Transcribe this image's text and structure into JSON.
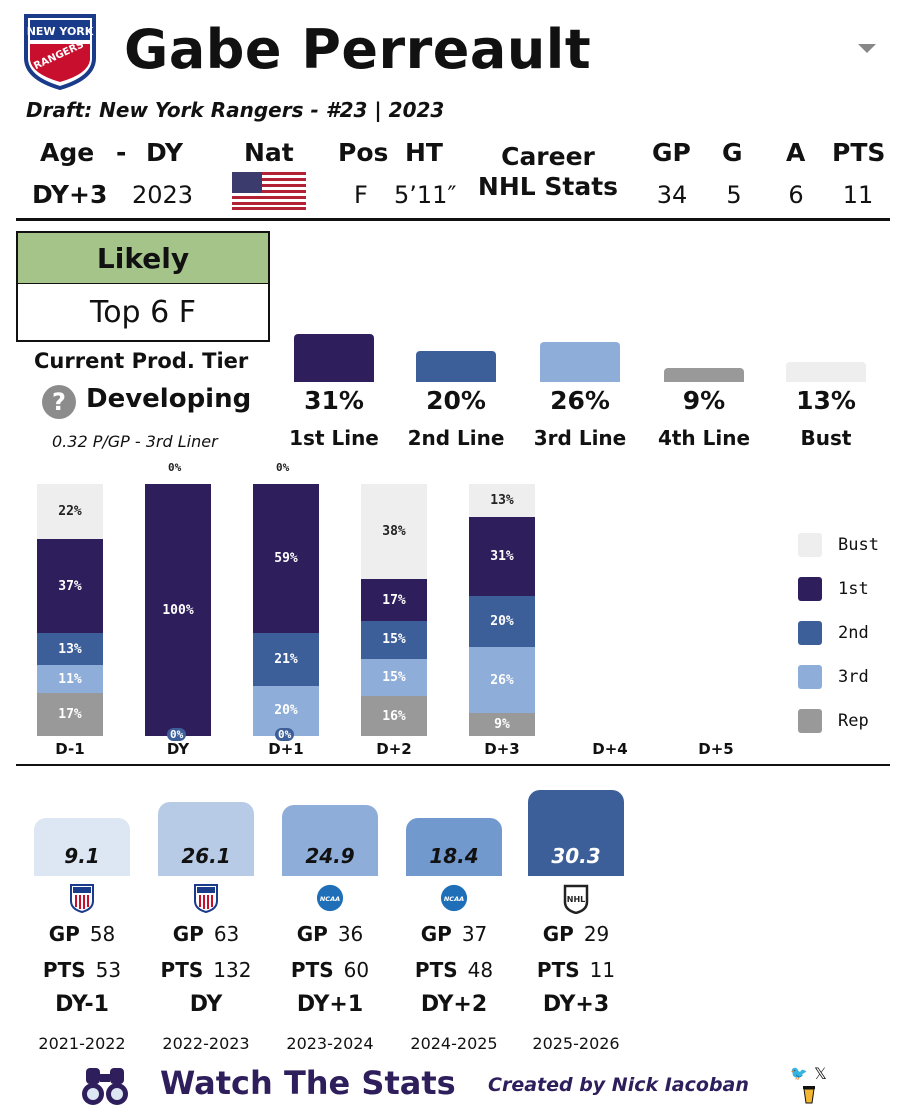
{
  "header": {
    "name": "Gabe Perreault",
    "draft": "Draft: New York Rangers - #23 | 2023",
    "logo_text": [
      "NEW YORK",
      "RANGERS"
    ]
  },
  "bio": {
    "labels": {
      "age": "Age",
      "dash": "-",
      "dy": "DY",
      "nat": "Nat",
      "pos": "Pos",
      "ht": "HT",
      "career1": "Career",
      "career2": "NHL Stats",
      "gp": "GP",
      "g": "G",
      "a": "A",
      "pts": "PTS"
    },
    "age_value": "DY+3",
    "dy_value": "2023",
    "nat_icon": "usa-flag-icon",
    "pos_value": "F",
    "ht_value": "5’11″",
    "career": {
      "gp": "34",
      "g": "5",
      "a": "6",
      "pts": "11"
    }
  },
  "projection": {
    "tier_label": "Likely",
    "tier_value": "Top 6 F"
  },
  "current": {
    "label": "Current Prod. Tier",
    "status": "Developing",
    "status_icon": "question-icon",
    "detail": "0.32 P/GP - 3rd Liner"
  },
  "probabilities": [
    {
      "pct": "31%",
      "label": "1st Line",
      "value": 31,
      "color": "#2e1f5c"
    },
    {
      "pct": "20%",
      "label": "2nd Line",
      "value": 20,
      "color": "#3d5f99"
    },
    {
      "pct": "26%",
      "label": "3rd Line",
      "value": 26,
      "color": "#8eadd8"
    },
    {
      "pct": "9%",
      "label": "4th Line",
      "value": 9,
      "color": "#999999"
    },
    {
      "pct": "13%",
      "label": "Bust",
      "value": 13,
      "color": "#eeeeee"
    }
  ],
  "chart_data": {
    "type": "bar",
    "stacked": true,
    "categories": [
      "D-1",
      "DY",
      "D+1",
      "D+2",
      "D+3",
      "D+4",
      "D+5"
    ],
    "series": [
      {
        "name": "Rep",
        "color": "#999999",
        "values": [
          17,
          0,
          0,
          16,
          9,
          null,
          null
        ]
      },
      {
        "name": "3rd",
        "color": "#8eadd8",
        "values": [
          11,
          0,
          20,
          15,
          26,
          null,
          null
        ]
      },
      {
        "name": "2nd",
        "color": "#3d5f99",
        "values": [
          13,
          0,
          21,
          15,
          20,
          null,
          null
        ]
      },
      {
        "name": "1st",
        "color": "#2e1f5c",
        "values": [
          37,
          100,
          59,
          17,
          31,
          null,
          null
        ]
      },
      {
        "name": "Bust",
        "color": "#eeeeee",
        "values": [
          22,
          0,
          0,
          38,
          13,
          null,
          null
        ]
      }
    ],
    "legend": [
      "Bust",
      "1st",
      "2nd",
      "3rd",
      "Rep"
    ],
    "legend_position": "right"
  },
  "seasons": [
    {
      "value": "9.1",
      "score": 9.1,
      "league_icon": "ushl-icon",
      "gp": "58",
      "pts": "53",
      "dy": "DY-1",
      "years": "2021-2022",
      "color": "#dde7f3"
    },
    {
      "value": "26.1",
      "score": 26.1,
      "league_icon": "ushl-icon",
      "gp": "63",
      "pts": "132",
      "dy": "DY",
      "years": "2022-2023",
      "color": "#b7cbe6"
    },
    {
      "value": "24.9",
      "score": 24.9,
      "league_icon": "ncaa-icon",
      "gp": "36",
      "pts": "60",
      "dy": "DY+1",
      "years": "2023-2024",
      "color": "#8eadd8"
    },
    {
      "value": "18.4",
      "score": 18.4,
      "league_icon": "ncaa-icon",
      "gp": "37",
      "pts": "48",
      "dy": "DY+2",
      "years": "2024-2025",
      "color": "#7299cd"
    },
    {
      "value": "30.3",
      "score": 30.3,
      "league_icon": "nhl-icon",
      "gp": "29",
      "pts": "11",
      "dy": "DY+3",
      "years": "2025-2026",
      "color": "#3d5f99"
    }
  ],
  "season_labels": {
    "gp": "GP",
    "pts": "PTS"
  },
  "footer": {
    "brand": "Watch The Stats",
    "credit": "Created by Nick Iacoban"
  }
}
